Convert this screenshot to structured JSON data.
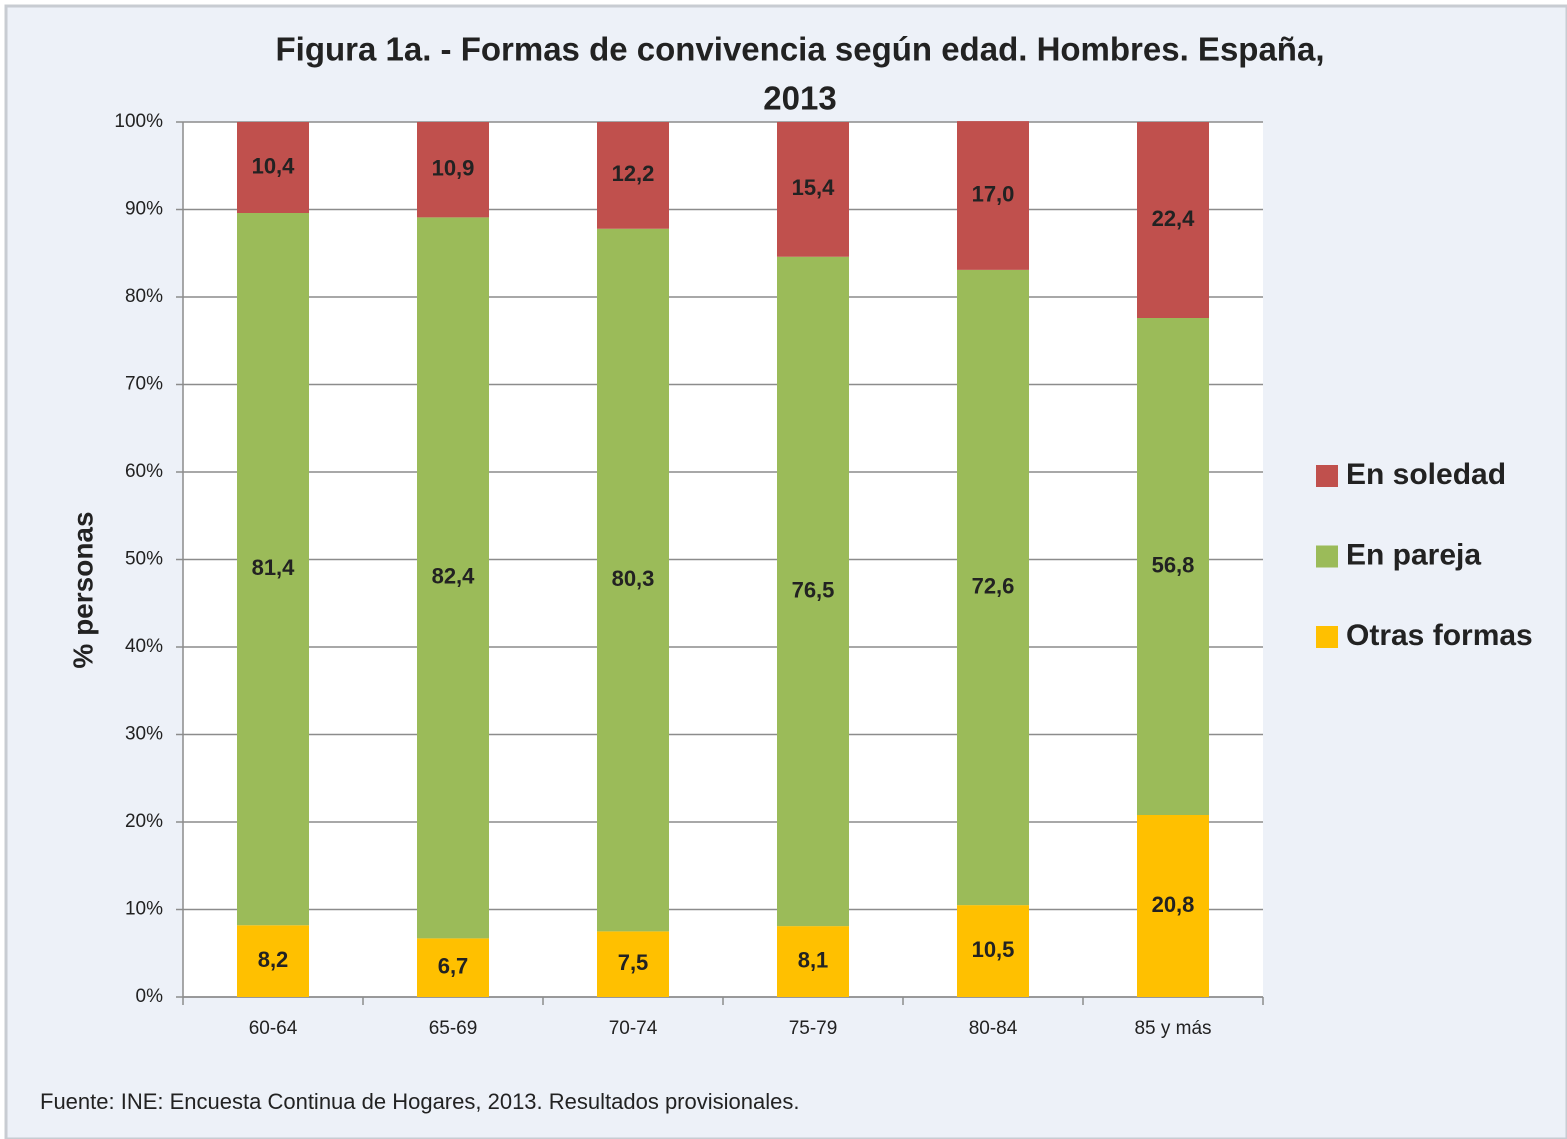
{
  "chart_data": {
    "type": "stacked_bar",
    "title": [
      "Figura 1a. - Formas de convivencia según edad.  Hombres. España,",
      "2013"
    ],
    "ylabel": "% personas",
    "source": "Fuente: INE: Encuesta Continua de Hogares, 2013. Resultados provisionales.",
    "categories": [
      "60-64",
      "65-69",
      "70-74",
      "75-79",
      "80-84",
      "85 y más"
    ],
    "series": [
      {
        "name": "Otras formas",
        "color": "#ffc000",
        "values": [
          8.2,
          6.7,
          7.5,
          8.1,
          10.5,
          20.8
        ],
        "value_labels": [
          "8,2",
          "6,7",
          "7,5",
          "8,1",
          "10,5",
          "20,8"
        ]
      },
      {
        "name": "En pareja",
        "color": "#9bbb59",
        "values": [
          81.4,
          82.4,
          80.3,
          76.5,
          72.6,
          56.8
        ],
        "value_labels": [
          "81,4",
          "82,4",
          "80,3",
          "76,5",
          "72,6",
          "56,8"
        ]
      },
      {
        "name": "En soledad",
        "color": "#c0504d",
        "values": [
          10.4,
          10.9,
          12.2,
          15.4,
          17.0,
          22.4
        ],
        "value_labels": [
          "10,4",
          "10,9",
          "12,2",
          "15,4",
          "17,0",
          "22,4"
        ]
      }
    ],
    "ylim": [
      0,
      100
    ],
    "yticks": [
      {
        "value": 0,
        "label": "0%"
      },
      {
        "value": 10,
        "label": "10%"
      },
      {
        "value": 20,
        "label": "20%"
      },
      {
        "value": 30,
        "label": "30%"
      },
      {
        "value": 40,
        "label": "40%"
      },
      {
        "value": 50,
        "label": "50%"
      },
      {
        "value": 60,
        "label": "60%"
      },
      {
        "value": 70,
        "label": "70%"
      },
      {
        "value": 80,
        "label": "80%"
      },
      {
        "value": 90,
        "label": "90%"
      },
      {
        "value": 100,
        "label": "100%"
      }
    ],
    "grid": true,
    "legend": "right"
  }
}
